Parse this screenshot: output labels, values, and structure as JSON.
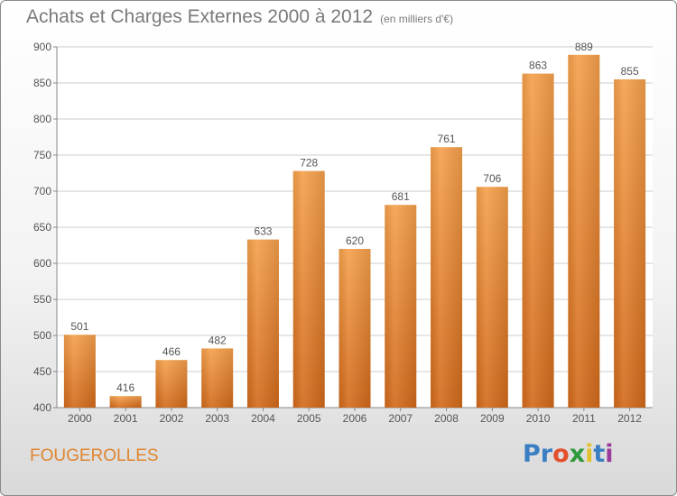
{
  "chart_data": {
    "type": "bar",
    "title": "Achats et Charges Externes 2000 à 2012",
    "subtitle": "(en milliers d'€)",
    "categories": [
      "2000",
      "2001",
      "2002",
      "2003",
      "2004",
      "2005",
      "2006",
      "2007",
      "2008",
      "2009",
      "2010",
      "2011",
      "2012"
    ],
    "values": [
      501,
      416,
      466,
      482,
      633,
      728,
      620,
      681,
      761,
      706,
      863,
      889,
      855
    ],
    "ylim": [
      400,
      900
    ],
    "yticks": [
      "400",
      "450",
      "500",
      "550",
      "600",
      "650",
      "700",
      "750",
      "800",
      "850",
      "900"
    ],
    "grid": true,
    "colors": {
      "bar_top": "#f5a04b",
      "bar_bottom": "#d2691a",
      "grid": "#cccccc",
      "text": "#555555"
    }
  },
  "location": "FOUGEROLLES",
  "logo": {
    "letters": [
      "P",
      "r",
      "o",
      "x",
      "i",
      "t",
      "i"
    ],
    "colors": [
      "#3a7fc4",
      "#3a7fc4",
      "#e3502c",
      "#2e9a3a",
      "#e3c12c",
      "#3a7fc4",
      "#9a3a9a"
    ]
  }
}
